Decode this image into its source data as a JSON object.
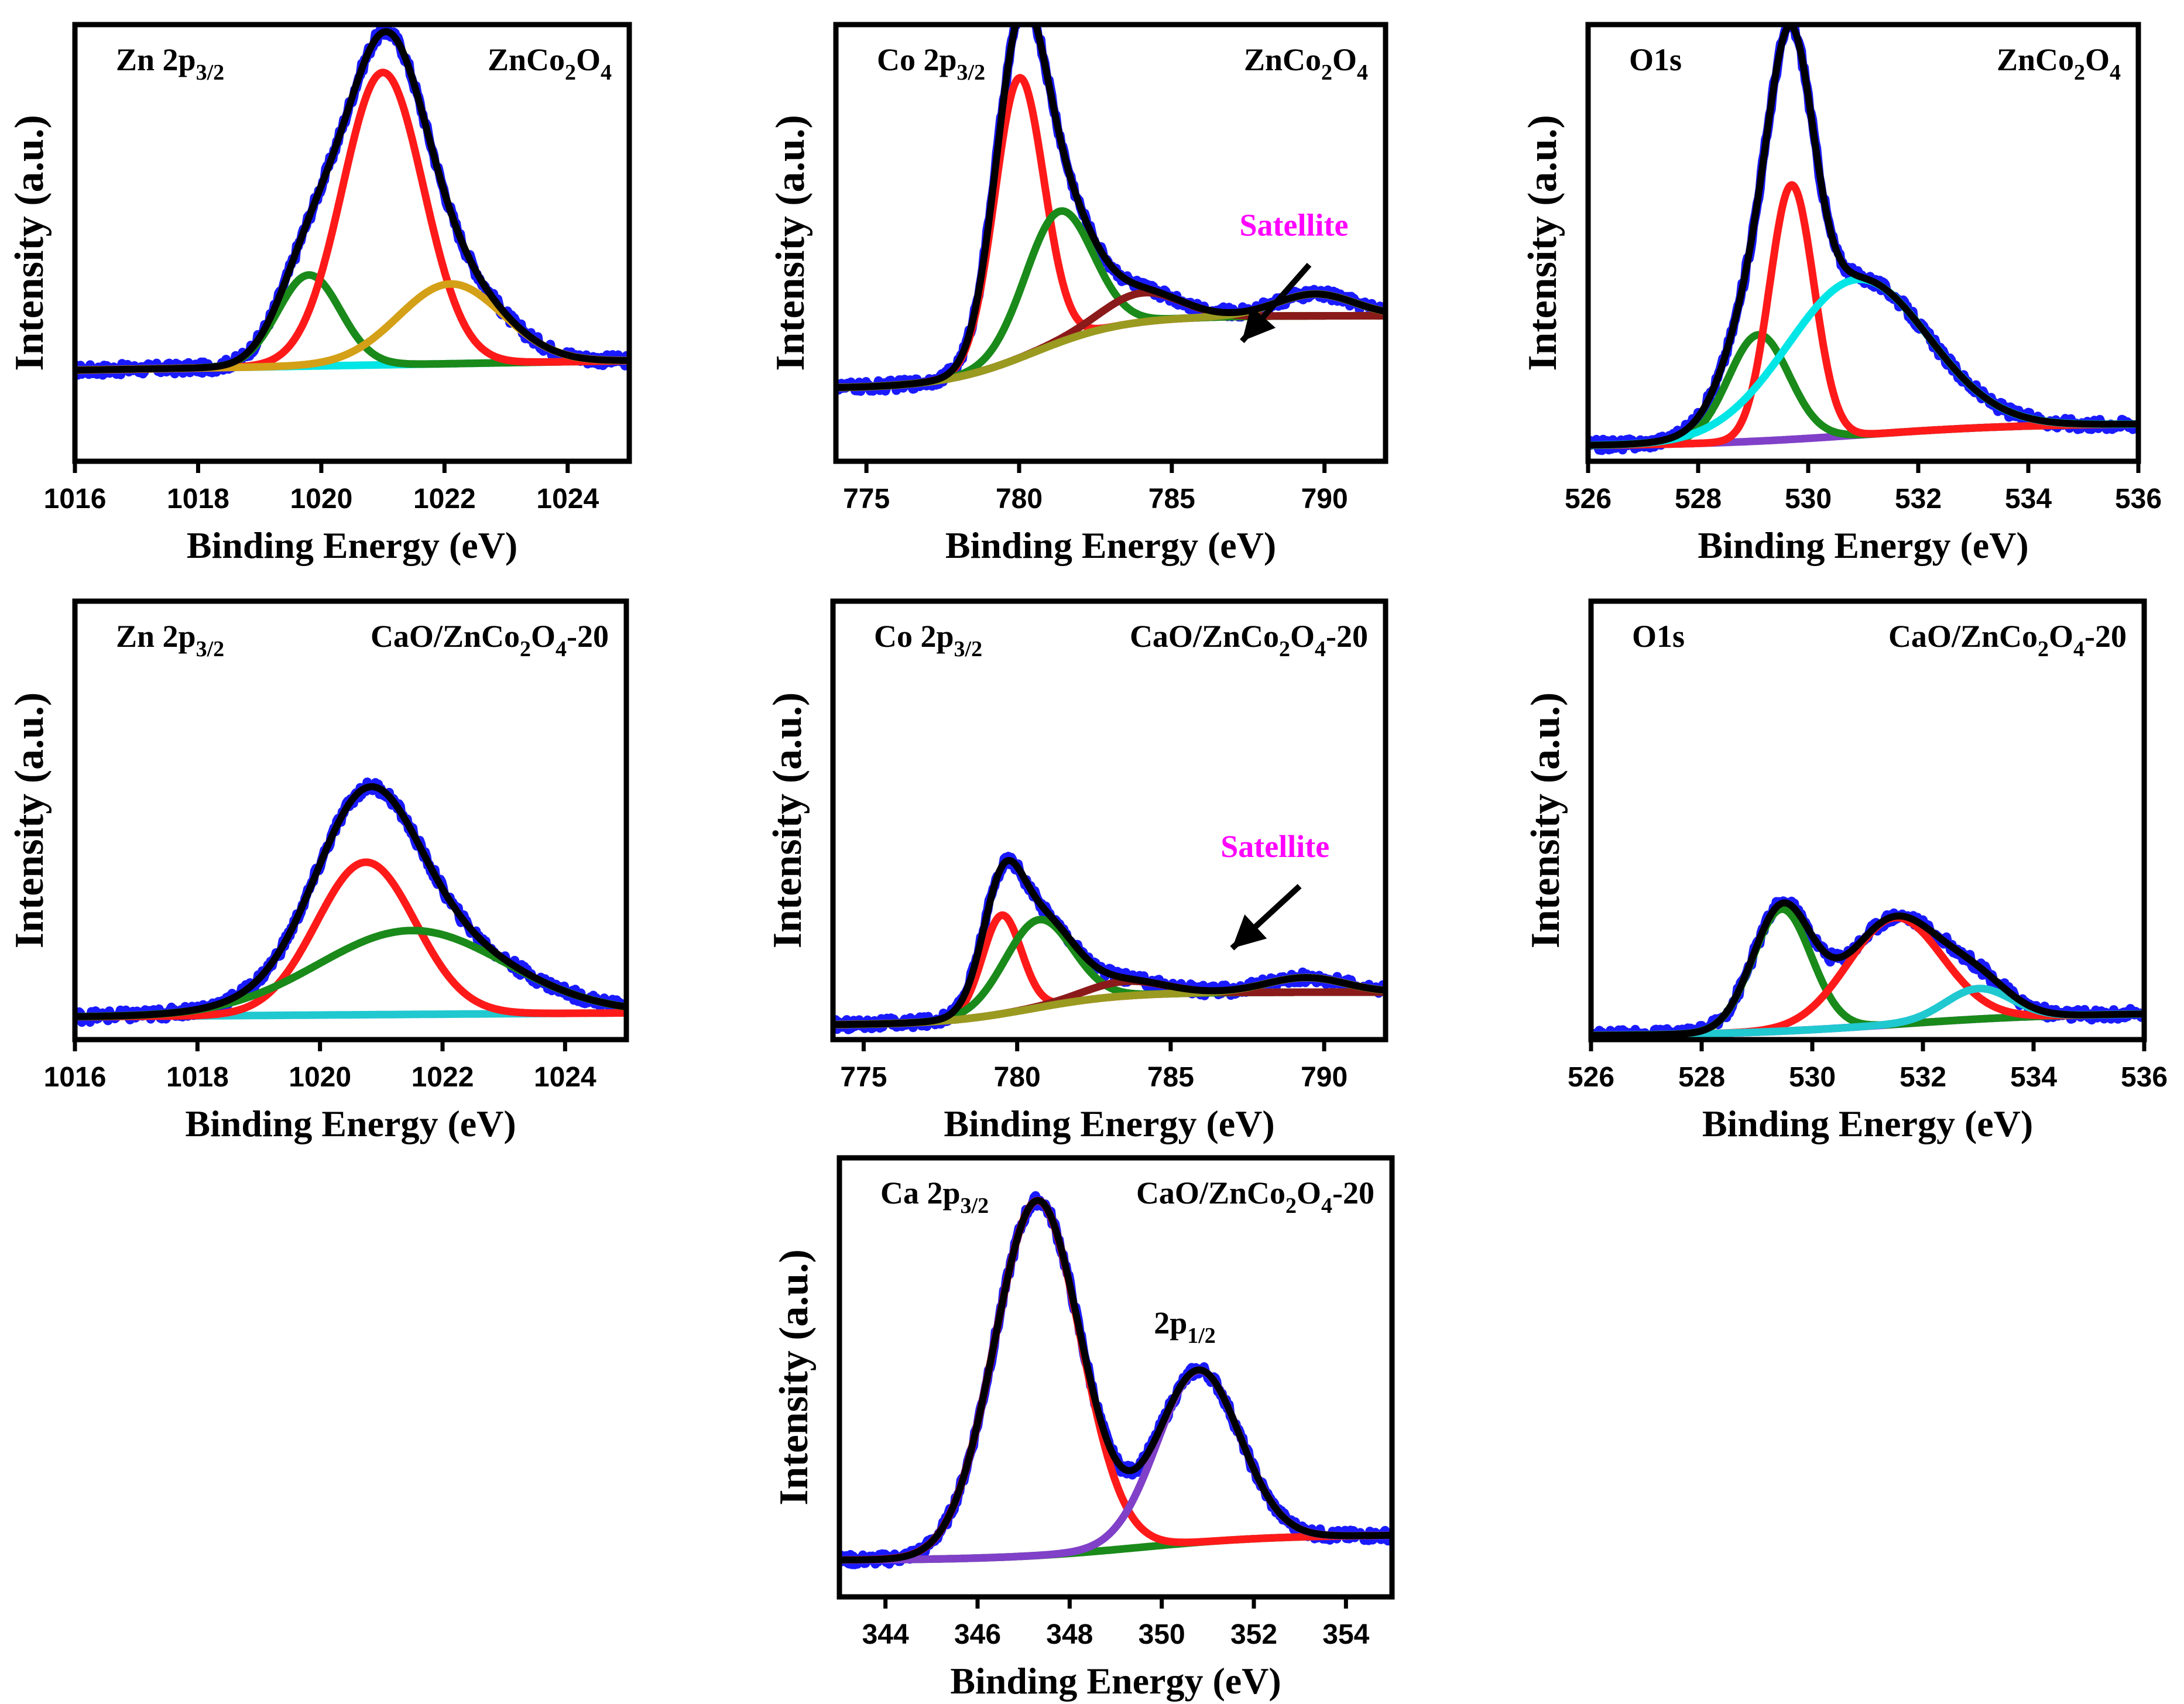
{
  "figure": {
    "colors": {
      "raw": "#1a1aff",
      "envelope": "#000000",
      "red": "#ff1a1a",
      "green": "#1a8a1a",
      "gold": "#d4a017",
      "cyan": "#00e5e5",
      "cyan_dark": "#20c8d0",
      "maroon": "#8b1a1a",
      "olive": "#9a9a20",
      "purple": "#8040c8",
      "purple_bright": "#8020e0",
      "magenta": "#ff00ff"
    }
  },
  "chart_data": [
    {
      "id": "zn-znco2o4",
      "type": "line",
      "title": "Zn 2p3/2",
      "core_level": {
        "element": "Zn 2p",
        "sub": "3/2",
        "rest": ""
      },
      "sample": {
        "a": "ZnCo",
        "b": "2",
        "c": "O",
        "d": "4",
        "e": ""
      },
      "xlabel": "Binding Energy (eV)",
      "ylabel": "Intensity (a.u.)",
      "xlim": [
        1016,
        1025
      ],
      "ylim": [
        0,
        1.15
      ],
      "xticks": [
        1016,
        1018,
        1020,
        1022,
        1024
      ],
      "tick_labels": [
        "1016",
        "1018",
        "1020",
        "1022",
        "1024"
      ],
      "background": {
        "type": "linear",
        "start": 0.24,
        "end": 0.265
      },
      "components": [
        {
          "name": "component-1",
          "center": 1019.8,
          "height": 0.24,
          "fwhm": 1.2,
          "color": "green"
        },
        {
          "name": "component-2",
          "center": 1021.0,
          "height": 0.77,
          "fwhm": 1.55,
          "color": "red"
        },
        {
          "name": "component-3",
          "center": 1022.1,
          "height": 0.21,
          "fwhm": 2.0,
          "color": "gold"
        }
      ],
      "baseline_color": "cyan",
      "annotations": []
    },
    {
      "id": "co-znco2o4",
      "type": "line",
      "title": "Co 2p3/2",
      "core_level": {
        "element": "Co 2p",
        "sub": "3/2",
        "rest": ""
      },
      "sample": {
        "a": "ZnCo",
        "b": "2",
        "c": "O",
        "d": "4",
        "e": ""
      },
      "xlabel": "Binding Energy (eV)",
      "ylabel": "Intensity (a.u.)",
      "xlim": [
        774,
        792
      ],
      "ylim": [
        0,
        1.2
      ],
      "xticks": [
        775,
        780,
        785,
        790
      ],
      "tick_labels": [
        "775",
        "780",
        "785",
        "790"
      ],
      "background": {
        "type": "shirley",
        "start": 0.2,
        "end": 0.4,
        "center": 780.5,
        "width": 1.5
      },
      "components": [
        {
          "name": "component-1",
          "center": 780.0,
          "height": 0.77,
          "fwhm": 1.9,
          "color": "red"
        },
        {
          "name": "component-2",
          "center": 781.3,
          "height": 0.36,
          "fwhm": 2.6,
          "color": "green"
        },
        {
          "name": "component-3",
          "center": 784.0,
          "height": 0.08,
          "fwhm": 3.0,
          "color": "maroon"
        },
        {
          "name": "component-4",
          "center": 789.7,
          "height": 0.06,
          "fwhm": 3.0,
          "color": "olive"
        }
      ],
      "baseline_color": "olive",
      "annotations": [
        {
          "text": "Satellite",
          "x": 789.0,
          "y": 0.62,
          "arrow_from": [
            789.5,
            0.54
          ],
          "arrow_to": [
            787.3,
            0.33
          ]
        }
      ]
    },
    {
      "id": "o1s-znco2o4",
      "type": "line",
      "title": "O1s",
      "core_level": {
        "element": "O1s",
        "sub": "",
        "rest": ""
      },
      "sample": {
        "a": "ZnCo",
        "b": "2",
        "c": "O",
        "d": "4",
        "e": ""
      },
      "xlabel": "Binding Energy (eV)",
      "ylabel": "Intensity (a.u.)",
      "xlim": [
        526,
        536
      ],
      "ylim": [
        0,
        1.15
      ],
      "xticks": [
        526,
        528,
        530,
        532,
        534,
        536
      ],
      "tick_labels": [
        "526",
        "528",
        "530",
        "532",
        "534",
        "536"
      ],
      "background": {
        "type": "shirley",
        "start": 0.04,
        "end": 0.1,
        "center": 531.0,
        "width": 1.5
      },
      "components": [
        {
          "name": "component-1",
          "center": 529.1,
          "height": 0.28,
          "fwhm": 1.3,
          "color": "green"
        },
        {
          "name": "component-2",
          "center": 529.7,
          "height": 0.67,
          "fwhm": 0.95,
          "color": "red"
        },
        {
          "name": "component-3",
          "center": 530.9,
          "height": 0.41,
          "fwhm": 3.0,
          "color": "cyan"
        }
      ],
      "baseline_color": "purple",
      "annotations": []
    },
    {
      "id": "zn-cao",
      "type": "line",
      "title": "Zn 2p3/2",
      "core_level": {
        "element": "Zn 2p",
        "sub": "3/2",
        "rest": ""
      },
      "sample": {
        "a": "CaO/ZnCo",
        "b": "2",
        "c": "O",
        "d": "4",
        "e": "-20"
      },
      "xlabel": "Binding Energy (eV)",
      "ylabel": "Intensity (a.u.)",
      "xlim": [
        1016,
        1025
      ],
      "ylim": [
        0,
        1.15
      ],
      "xticks": [
        1016,
        1018,
        1020,
        1022,
        1024
      ],
      "tick_labels": [
        "1016",
        "1018",
        "1020",
        "1022",
        "1024"
      ],
      "background": {
        "type": "linear",
        "start": 0.06,
        "end": 0.07
      },
      "components": [
        {
          "name": "component-1",
          "center": 1020.75,
          "height": 0.4,
          "fwhm": 1.9,
          "color": "red"
        },
        {
          "name": "component-2",
          "center": 1021.5,
          "height": 0.22,
          "fwhm": 3.6,
          "color": "green"
        }
      ],
      "baseline_color": "cyan_dark",
      "annotations": []
    },
    {
      "id": "co-cao",
      "type": "line",
      "title": "Co 2p3/2",
      "core_level": {
        "element": "Co 2p",
        "sub": "3/2",
        "rest": ""
      },
      "sample": {
        "a": "CaO/ZnCo",
        "b": "2",
        "c": "O",
        "d": "4",
        "e": "-20"
      },
      "xlabel": "Binding Energy (eV)",
      "ylabel": "Intensity (a.u.)",
      "xlim": [
        774,
        792
      ],
      "ylim": [
        0,
        1.2
      ],
      "xticks": [
        775,
        780,
        785,
        790
      ],
      "tick_labels": [
        "775",
        "780",
        "785",
        "790"
      ],
      "background": {
        "type": "shirley",
        "start": 0.04,
        "end": 0.13,
        "center": 780.5,
        "width": 1.5
      },
      "components": [
        {
          "name": "component-1",
          "center": 779.5,
          "height": 0.27,
          "fwhm": 1.5,
          "color": "red"
        },
        {
          "name": "component-2",
          "center": 780.7,
          "height": 0.24,
          "fwhm": 2.6,
          "color": "green"
        },
        {
          "name": "component-3",
          "center": 783.5,
          "height": 0.04,
          "fwhm": 3.0,
          "color": "maroon"
        },
        {
          "name": "component-4",
          "center": 789.4,
          "height": 0.04,
          "fwhm": 3.0,
          "color": "olive"
        }
      ],
      "baseline_color": "olive",
      "annotations": [
        {
          "text": "Satellite",
          "x": 788.4,
          "y": 0.5,
          "arrow_from": [
            789.2,
            0.42
          ],
          "arrow_to": [
            787.0,
            0.25
          ]
        }
      ]
    },
    {
      "id": "o1s-cao",
      "type": "line",
      "title": "O1s",
      "core_level": {
        "element": "O1s",
        "sub": "",
        "rest": ""
      },
      "sample": {
        "a": "CaO/ZnCo",
        "b": "2",
        "c": "O",
        "d": "4",
        "e": "-20"
      },
      "xlabel": "Binding Energy (eV)",
      "ylabel": "Intensity (a.u.)",
      "xlim": [
        526,
        536
      ],
      "ylim": [
        0,
        1.15
      ],
      "xticks": [
        526,
        528,
        530,
        532,
        534,
        536
      ],
      "tick_labels": [
        "526",
        "528",
        "530",
        "532",
        "534",
        "536"
      ],
      "background": {
        "type": "shirley",
        "start": 0.01,
        "end": 0.07,
        "center": 531.5,
        "width": 1.5
      },
      "components": [
        {
          "name": "component-1",
          "center": 529.45,
          "height": 0.32,
          "fwhm": 1.25,
          "color": "green"
        },
        {
          "name": "component-2",
          "center": 531.5,
          "height": 0.28,
          "fwhm": 2.0,
          "color": "red"
        },
        {
          "name": "component-3",
          "center": 533.0,
          "height": 0.08,
          "fwhm": 1.4,
          "color": "cyan_dark"
        }
      ],
      "baseline_color": "purple_bright",
      "annotations": []
    },
    {
      "id": "ca-cao",
      "type": "line",
      "title": "Ca 2p3/2",
      "core_level": {
        "element": "Ca 2p",
        "sub": "3/2",
        "rest": ""
      },
      "sample": {
        "a": "CaO/ZnCo",
        "b": "2",
        "c": "O",
        "d": "4",
        "e": "-20"
      },
      "xlabel": "Binding Energy (eV)",
      "ylabel": "Intensity (a.u.)",
      "xlim": [
        343,
        355
      ],
      "ylim": [
        0,
        1.2
      ],
      "xticks": [
        344,
        346,
        348,
        350,
        352,
        354
      ],
      "tick_labels": [
        "344",
        "346",
        "348",
        "350",
        "352",
        "354"
      ],
      "background": {
        "type": "shirley",
        "start": 0.1,
        "end": 0.17,
        "center": 349.5,
        "width": 1.5
      },
      "components": [
        {
          "name": "component-1",
          "center": 347.3,
          "height": 0.97,
          "fwhm": 2.2,
          "color": "red"
        },
        {
          "name": "component-2",
          "center": 350.8,
          "height": 0.47,
          "fwhm": 2.1,
          "color": "purple"
        }
      ],
      "baseline_color": "green",
      "annotations": [
        {
          "text": "2p",
          "sub": "1/2",
          "x": 350.5,
          "y": 0.72
        }
      ]
    }
  ]
}
